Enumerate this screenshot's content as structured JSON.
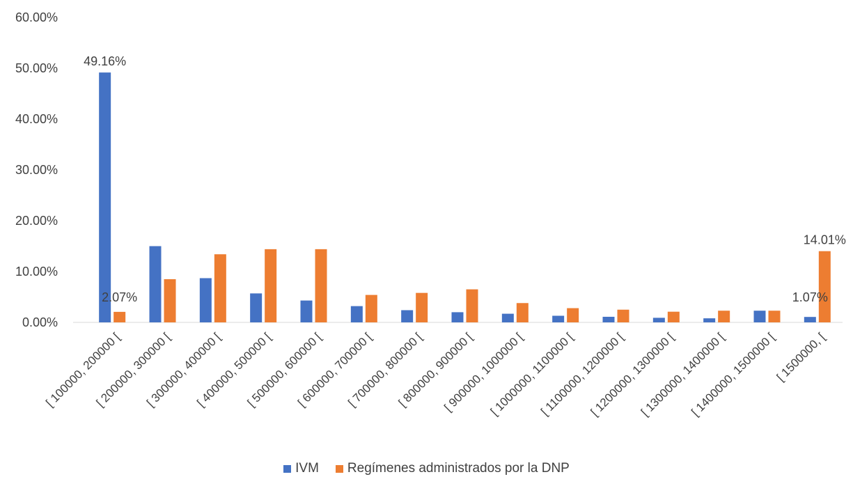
{
  "chart_data": {
    "type": "bar",
    "categories": [
      "[ 100000, 200000 [",
      "[ 200000, 300000 [",
      "[ 300000, 400000 [",
      "[ 400000, 500000 [",
      "[ 500000, 600000 [",
      "[ 600000, 700000 [",
      "[ 700000, 800000 [",
      "[ 800000, 900000 [",
      "[ 900000, 1000000 [",
      "[ 1000000, 1100000 [",
      "[ 1100000, 1200000 [",
      "[ 1200000, 1300000 [",
      "[ 1300000, 1400000 [",
      "[ 1400000, 1500000 [",
      "[ 1500000,  ["
    ],
    "series": [
      {
        "name": "IVM",
        "color": "#4472C4",
        "values": [
          49.16,
          15.0,
          8.7,
          5.7,
          4.3,
          3.2,
          2.4,
          2.0,
          1.7,
          1.3,
          1.1,
          0.9,
          0.8,
          2.3,
          1.07
        ]
      },
      {
        "name": "Regímenes administrados por la DNP",
        "color": "#ED7D31",
        "values": [
          2.07,
          8.5,
          13.4,
          14.4,
          14.4,
          5.4,
          5.8,
          6.5,
          3.8,
          2.8,
          2.5,
          2.1,
          2.3,
          2.3,
          14.01
        ]
      }
    ],
    "data_labels": [
      {
        "series": 0,
        "index": 0,
        "text": "49.16%"
      },
      {
        "series": 1,
        "index": 0,
        "text": "2.07%"
      },
      {
        "series": 0,
        "index": 14,
        "text": "1.07%"
      },
      {
        "series": 1,
        "index": 14,
        "text": "14.01%"
      }
    ],
    "yticks": [
      "0.00%",
      "10.00%",
      "20.00%",
      "30.00%",
      "40.00%",
      "50.00%",
      "60.00%"
    ],
    "ylim": [
      0,
      60
    ],
    "grid": false,
    "legend_position": "bottom"
  }
}
